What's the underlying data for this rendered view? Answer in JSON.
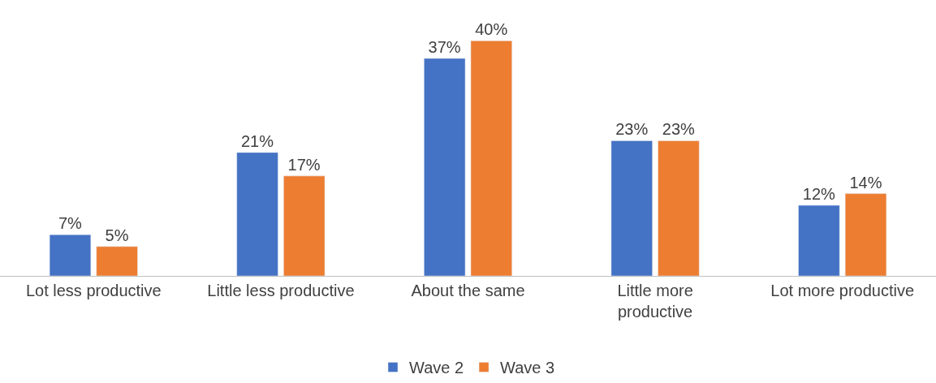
{
  "chart_data": {
    "type": "bar",
    "categories": [
      "Lot less productive",
      "Little less productive",
      "About the same",
      "Little more\nproductive",
      "Lot more productive"
    ],
    "series": [
      {
        "name": "Wave 2",
        "color": "#4472c4",
        "values": [
          7,
          21,
          37,
          23,
          12
        ],
        "value_labels": [
          "7%",
          "21%",
          "37%",
          "23%",
          "12%"
        ]
      },
      {
        "name": "Wave 3",
        "color": "#ed7d31",
        "values": [
          5,
          17,
          40,
          23,
          14
        ],
        "value_labels": [
          "5%",
          "17%",
          "40%",
          "23%",
          "14%"
        ]
      }
    ],
    "legend": "bottom"
  }
}
